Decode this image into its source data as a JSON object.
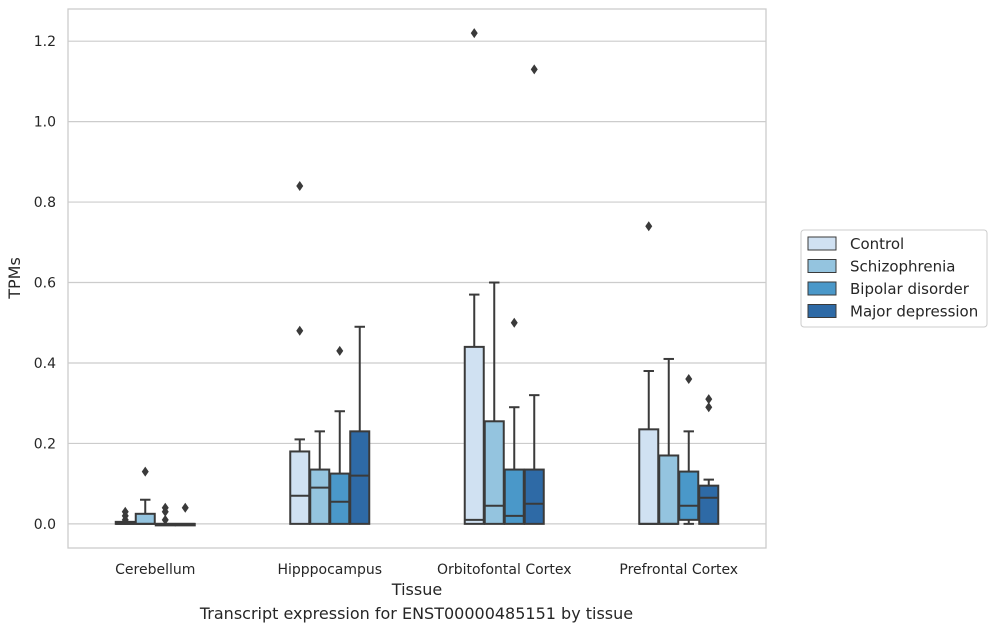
{
  "caption": "Transcript expression for ENST00000485151 by tissue",
  "chart_data": {
    "type": "box",
    "xlabel": "Tissue",
    "ylabel": "TPMs",
    "ylim": [
      -0.06,
      1.28
    ],
    "yticks": [
      0.0,
      0.2,
      0.4,
      0.6,
      0.8,
      1.0,
      1.2
    ],
    "ytick_labels": [
      "0.0",
      "0.2",
      "0.4",
      "0.6",
      "0.8",
      "1.0",
      "1.2"
    ],
    "grid": "horizontal",
    "legend_position": "right",
    "categories": [
      "Cerebellum",
      "Hipppocampus",
      "Orbitofontal Cortex",
      "Prefrontal Cortex"
    ],
    "series": [
      {
        "name": "Control",
        "color": "#d0e1f2",
        "boxes": [
          {
            "q1": 0.0,
            "median": 0.0,
            "q3": 0.005,
            "whisker_low": 0.0,
            "whisker_high": 0.005,
            "outliers": [
              0.01,
              0.02,
              0.03
            ]
          },
          {
            "q1": 0.0,
            "median": 0.07,
            "q3": 0.18,
            "whisker_low": 0.0,
            "whisker_high": 0.21,
            "outliers": [
              0.48,
              0.84
            ]
          },
          {
            "q1": 0.0,
            "median": 0.01,
            "q3": 0.44,
            "whisker_low": 0.0,
            "whisker_high": 0.57,
            "outliers": [
              1.22
            ]
          },
          {
            "q1": 0.0,
            "median": 0.0,
            "q3": 0.235,
            "whisker_low": 0.0,
            "whisker_high": 0.38,
            "outliers": [
              0.74
            ]
          }
        ]
      },
      {
        "name": "Schizophrenia",
        "color": "#94c4df",
        "boxes": [
          {
            "q1": 0.0,
            "median": 0.0,
            "q3": 0.025,
            "whisker_low": 0.0,
            "whisker_high": 0.06,
            "outliers": [
              0.13
            ]
          },
          {
            "q1": 0.0,
            "median": 0.09,
            "q3": 0.135,
            "whisker_low": 0.0,
            "whisker_high": 0.23,
            "outliers": []
          },
          {
            "q1": 0.0,
            "median": 0.045,
            "q3": 0.255,
            "whisker_low": 0.0,
            "whisker_high": 0.6,
            "outliers": []
          },
          {
            "q1": 0.0,
            "median": 0.0,
            "q3": 0.17,
            "whisker_low": 0.0,
            "whisker_high": 0.41,
            "outliers": []
          }
        ]
      },
      {
        "name": "Bipolar disorder",
        "color": "#4a98c9",
        "boxes": [
          {
            "q1": 0.0,
            "median": 0.0,
            "q3": 0.0,
            "whisker_low": 0.0,
            "whisker_high": 0.0,
            "outliers": [
              0.01,
              0.03,
              0.04
            ]
          },
          {
            "q1": 0.0,
            "median": 0.055,
            "q3": 0.125,
            "whisker_low": 0.0,
            "whisker_high": 0.28,
            "outliers": [
              0.43
            ]
          },
          {
            "q1": 0.0,
            "median": 0.02,
            "q3": 0.135,
            "whisker_low": 0.0,
            "whisker_high": 0.29,
            "outliers": [
              0.5
            ]
          },
          {
            "q1": 0.01,
            "median": 0.045,
            "q3": 0.13,
            "whisker_low": 0.0,
            "whisker_high": 0.23,
            "outliers": [
              0.36
            ]
          }
        ]
      },
      {
        "name": "Major depression",
        "color": "#2e6aa6",
        "boxes": [
          {
            "q1": 0.0,
            "median": 0.0,
            "q3": 0.0,
            "whisker_low": 0.0,
            "whisker_high": 0.0,
            "outliers": [
              0.04
            ]
          },
          {
            "q1": 0.0,
            "median": 0.12,
            "q3": 0.23,
            "whisker_low": 0.0,
            "whisker_high": 0.49,
            "outliers": []
          },
          {
            "q1": 0.0,
            "median": 0.05,
            "q3": 0.135,
            "whisker_low": 0.0,
            "whisker_high": 0.32,
            "outliers": [
              1.13
            ]
          },
          {
            "q1": 0.0,
            "median": 0.065,
            "q3": 0.095,
            "whisker_low": 0.0,
            "whisker_high": 0.11,
            "outliers": [
              0.29,
              0.31
            ]
          }
        ]
      }
    ]
  }
}
